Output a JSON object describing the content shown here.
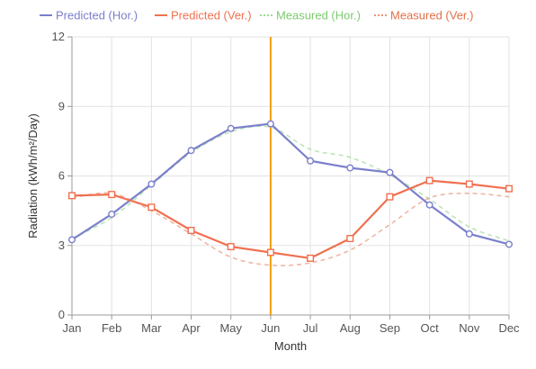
{
  "chart_data": {
    "type": "line",
    "title": "",
    "xlabel": "Month",
    "ylabel": "Radiation (kWh/m²/Day)",
    "categories": [
      "Jan",
      "Feb",
      "Mar",
      "Apr",
      "May",
      "Jun",
      "Jul",
      "Aug",
      "Sep",
      "Oct",
      "Nov",
      "Dec"
    ],
    "ylim": [
      0,
      12
    ],
    "yticks": [
      0,
      3,
      6,
      9,
      12
    ],
    "grid": true,
    "legend_position": "top",
    "highlight": {
      "category": "Jun",
      "color": "#F0A000"
    },
    "series": [
      {
        "name": "Predicted (Hor.)",
        "color": "#7B7FCB",
        "style": "solid",
        "marker": "circle",
        "values": [
          3.25,
          4.35,
          5.65,
          7.1,
          8.05,
          8.25,
          6.65,
          6.35,
          6.15,
          4.75,
          3.5,
          3.05
        ]
      },
      {
        "name": "Predicted (Ver.)",
        "color": "#F07050",
        "style": "solid",
        "marker": "square",
        "values": [
          5.15,
          5.2,
          4.65,
          3.65,
          2.95,
          2.7,
          2.45,
          3.3,
          5.1,
          5.8,
          5.65,
          5.45
        ]
      },
      {
        "name": "Measured (Hor.)",
        "color": "#7CCB6E",
        "style": "dotted",
        "marker": "none",
        "values": [
          3.3,
          4.2,
          5.6,
          7.0,
          7.9,
          8.1,
          7.15,
          6.8,
          6.05,
          5.0,
          3.8,
          3.2
        ]
      },
      {
        "name": "Measured (Ver.)",
        "color": "#E0704A",
        "style": "dotted",
        "marker": "none",
        "values": [
          5.05,
          5.25,
          4.5,
          3.5,
          2.5,
          2.15,
          2.25,
          2.8,
          3.9,
          5.05,
          5.25,
          5.1
        ]
      }
    ]
  }
}
